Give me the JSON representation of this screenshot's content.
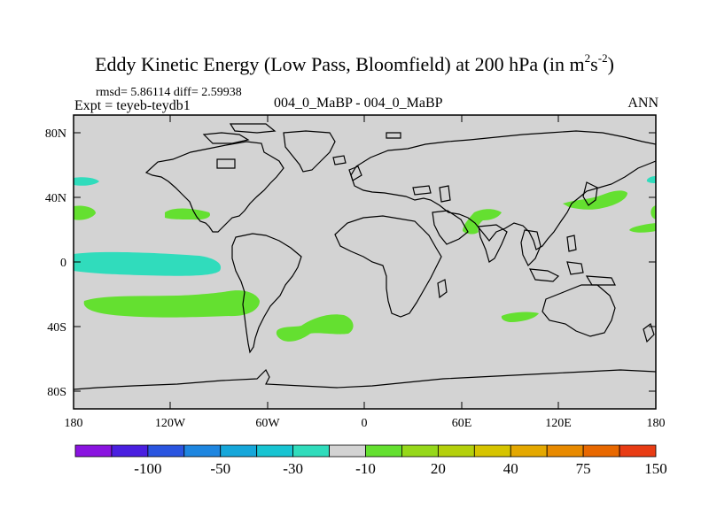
{
  "title": {
    "main": "Eddy Kinetic Energy (Low Pass, Bloomfield) at 200 hPa (in m",
    "sup1": "2",
    "mid": "s",
    "sup2": "-2",
    "end": ")"
  },
  "stats": "rmsd= 5.86114 diff= 2.59938",
  "expt": "Expt = teyeb-teydb1",
  "case_label": "004_0_MaBP - 004_0_MaBP",
  "season": "ANN",
  "lat_labels": [
    "80N",
    "40N",
    "0",
    "40S",
    "80S"
  ],
  "lon_labels": [
    "180",
    "120W",
    "60W",
    "0",
    "60E",
    "120E",
    "180"
  ],
  "colors": {
    "land_sea_bg": "#d3d3d3",
    "negative_cyan": "#30dcbc",
    "positive_green": "#64e030",
    "coast": "#000000"
  },
  "colorbar": {
    "colors": [
      "#8a14e0",
      "#4a1fe0",
      "#2a55e0",
      "#1e86e0",
      "#16a7da",
      "#18c4d2",
      "#30dcbc",
      "#d3d3d3",
      "#64e030",
      "#96d81a",
      "#b4d00c",
      "#d6c400",
      "#e4a800",
      "#e88a00",
      "#e86800",
      "#e83c14"
    ],
    "labels": [
      "-100",
      "-50",
      "-30",
      "-10",
      "20",
      "40",
      "75",
      "150"
    ]
  }
}
